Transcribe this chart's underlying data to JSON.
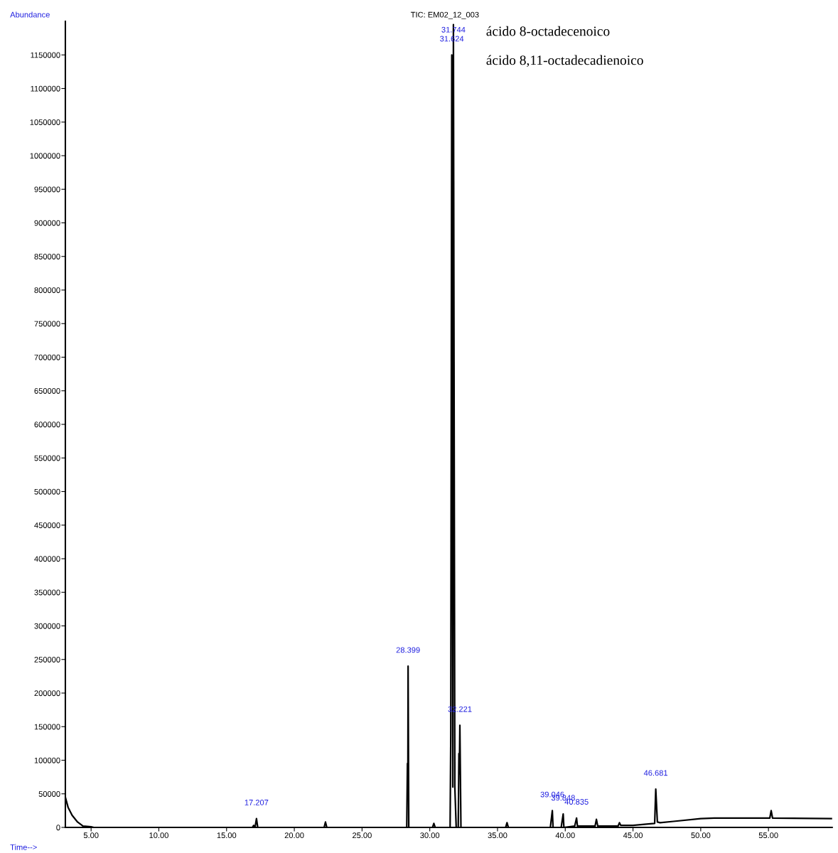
{
  "chart_data": {
    "type": "line",
    "title": "TIC: EM02_12_003",
    "xlabel": "Time-->",
    "ylabel": "Abundance",
    "series": [
      {
        "color": "#000000",
        "x": [
          3.1,
          3.3,
          3.6,
          4.0,
          4.4,
          5.0,
          5.2,
          16.9,
          17.0,
          17.1,
          17.207,
          17.3,
          22.2,
          22.3,
          22.4,
          28.3,
          28.35,
          28.38,
          28.399,
          28.45,
          30.2,
          30.3,
          30.4,
          31.5,
          31.55,
          31.624,
          31.7,
          31.744,
          31.85,
          31.95,
          32.1,
          32.15,
          32.18,
          32.221,
          32.3,
          35.6,
          35.7,
          35.8,
          38.9,
          39.046,
          39.1,
          39.7,
          39.848,
          39.9,
          40.7,
          40.835,
          40.9,
          42.2,
          42.3,
          42.4,
          43.9,
          44.0,
          44.1,
          45.0,
          46.0,
          46.6,
          46.681,
          46.8,
          47.0,
          48.0,
          50.0,
          51.0,
          55.1,
          55.2,
          55.3,
          59.7
        ],
        "values": [
          45000,
          30000,
          18000,
          8000,
          2000,
          1000,
          0,
          0,
          3000,
          0,
          13000,
          0,
          0,
          8000,
          0,
          0,
          95000,
          60000,
          240000,
          0,
          0,
          6000,
          0,
          0,
          140000,
          1150000,
          60000,
          1195000,
          60000,
          0,
          0,
          110000,
          80000,
          152000,
          0,
          0,
          7000,
          0,
          0,
          25000,
          0,
          0,
          20000,
          0,
          2000,
          14000,
          2000,
          2000,
          12000,
          2000,
          2000,
          7000,
          3000,
          3000,
          5000,
          6000,
          57000,
          8000,
          7000,
          9000,
          13000,
          14000,
          14000,
          25000,
          14000,
          13000
        ]
      }
    ],
    "xlim": [
      3.1,
      59.7
    ],
    "ylim": [
      0,
      1200000
    ],
    "xticks": [
      {
        "value": 5,
        "label": "5.00"
      },
      {
        "value": 10,
        "label": "10.00"
      },
      {
        "value": 15,
        "label": "15.00"
      },
      {
        "value": 20,
        "label": "20.00"
      },
      {
        "value": 25,
        "label": "25.00"
      },
      {
        "value": 30,
        "label": "30.00"
      },
      {
        "value": 35,
        "label": "35.00"
      },
      {
        "value": 40,
        "label": "40.00"
      },
      {
        "value": 45,
        "label": "45.00"
      },
      {
        "value": 50,
        "label": "50.00"
      },
      {
        "value": 55,
        "label": "55.00"
      }
    ],
    "yticks": [
      0,
      50000,
      100000,
      150000,
      200000,
      250000,
      300000,
      350000,
      400000,
      450000,
      500000,
      550000,
      600000,
      650000,
      700000,
      750000,
      800000,
      850000,
      900000,
      950000,
      1000000,
      1050000,
      1100000,
      1150000
    ],
    "grid": false,
    "annotations": [
      {
        "text": "31.744",
        "x": 31.744,
        "y": 1195000
      },
      {
        "text": "31.624",
        "x": 31.624,
        "y": 1150000
      },
      {
        "text": "28.399",
        "x": 28.399,
        "y": 240000
      },
      {
        "text": "32.221",
        "x": 32.221,
        "y": 152000
      },
      {
        "text": "17.207",
        "x": 17.207,
        "y": 13000
      },
      {
        "text": "39.046",
        "x": 39.046,
        "y": 25000
      },
      {
        "text": "39.848",
        "x": 39.848,
        "y": 20000
      },
      {
        "text": "40.835",
        "x": 40.835,
        "y": 14000
      },
      {
        "text": "46.681",
        "x": 46.681,
        "y": 57000
      },
      "ácido 8-octadecenoico",
      "ácido 8,11-octadecadienoico"
    ]
  }
}
